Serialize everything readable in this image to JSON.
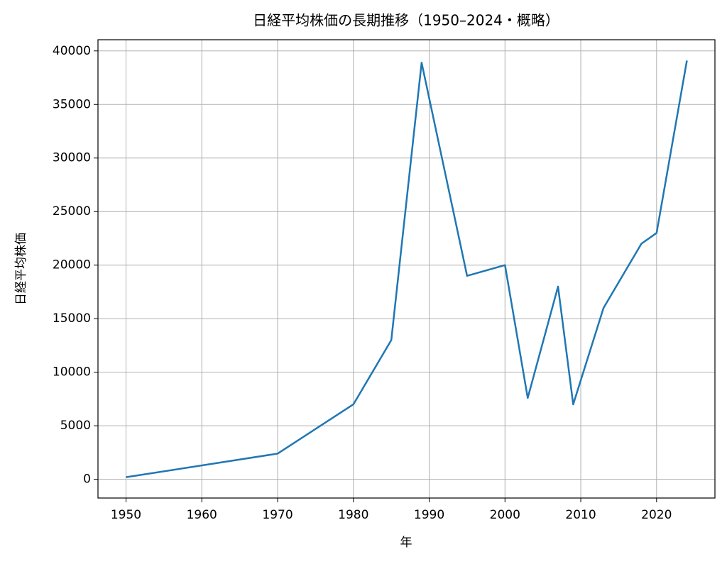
{
  "chart_data": {
    "type": "line",
    "title": "日経平均株価の長期推移（1950–2024・概略）",
    "xlabel": "年",
    "ylabel": "日経平均株価",
    "x": [
      1950,
      1970,
      1980,
      1985,
      1989,
      1995,
      2000,
      2003,
      2007,
      2009,
      2013,
      2018,
      2020,
      2024
    ],
    "series": [
      {
        "name": "日経平均株価",
        "color": "#1f77b4",
        "values": [
          200,
          2400,
          7000,
          13000,
          38900,
          19000,
          20000,
          7600,
          18000,
          7000,
          16000,
          22000,
          23000,
          39100
        ]
      }
    ],
    "xlim": [
      1946.3,
      2027.7
    ],
    "xticks": [
      1950,
      1960,
      1970,
      1980,
      1990,
      2000,
      2010,
      2020
    ],
    "ylim": [
      -1745,
      41045
    ],
    "yticks": [
      0,
      5000,
      10000,
      15000,
      20000,
      25000,
      30000,
      35000,
      40000
    ],
    "grid": true
  }
}
